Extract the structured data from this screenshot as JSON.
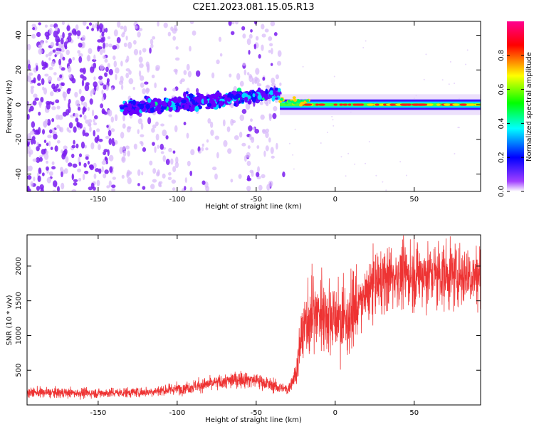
{
  "figure_title": "C2E1.2023.081.15.05.R13",
  "chart_data": [
    {
      "type": "heatmap",
      "title": "C2E1.2023.081.15.05.R13",
      "xlabel": "Height of straight line (km)",
      "ylabel": "Frequency (Hz)",
      "xlim": [
        -195,
        92
      ],
      "ylim": [
        -50,
        48
      ],
      "xticks": [
        -150,
        -100,
        -50,
        0,
        50
      ],
      "yticks": [
        -40,
        -20,
        0,
        20,
        40
      ],
      "xtick_labels": [
        "-150",
        "-100",
        "-50",
        "0",
        "50"
      ],
      "ytick_labels": [
        "-40",
        "-20",
        "0",
        "20",
        "40"
      ],
      "colorbar": {
        "label": "Normalized spectral amplitude",
        "range": [
          0.0,
          1.0
        ],
        "ticks": [
          0.0,
          0.2,
          0.4,
          0.6,
          0.8
        ],
        "tick_labels": [
          "0.0",
          "0.2",
          "0.4",
          "0.6",
          "0.8"
        ],
        "colormap": [
          "#ffffff",
          "#8a00ff",
          "#0000ff",
          "#00ffff",
          "#00ff00",
          "#ffff00",
          "#ff0000",
          "#ff0090"
        ]
      },
      "features": [
        {
          "name": "broadband noise",
          "x_range": [
            -195,
            -35
          ],
          "freq_range": [
            -50,
            48
          ],
          "amplitude": 0.05
        },
        {
          "name": "signal band (weak)",
          "x_range": [
            -135,
            -35
          ],
          "center_hz": [
            -2,
            6
          ],
          "amplitude": 0.25
        },
        {
          "name": "signal band (strong)",
          "x_range": [
            -35,
            92
          ],
          "center_hz": [
            2,
            0
          ],
          "amplitude": 0.9
        }
      ]
    },
    {
      "type": "line",
      "xlabel": "Height of straight line (km)",
      "ylabel": "SNR (10 * v/v)",
      "xlim": [
        -195,
        92
      ],
      "ylim": [
        0,
        2450
      ],
      "xticks": [
        -150,
        -100,
        -50,
        0,
        50
      ],
      "yticks": [
        500,
        1000,
        1500,
        2000
      ],
      "xtick_labels": [
        "-150",
        "-100",
        "-50",
        "0",
        "50"
      ],
      "ytick_labels": [
        "500",
        "1000",
        "1500",
        "2000"
      ],
      "series": [
        {
          "name": "SNR",
          "color": "#ee3333",
          "x": [
            -195,
            -150,
            -120,
            -100,
            -80,
            -60,
            -50,
            -40,
            -30,
            -25,
            -22,
            -18,
            -12,
            -5,
            0,
            5,
            10,
            15,
            20,
            25,
            35,
            50,
            70,
            92
          ],
          "values": [
            180,
            170,
            185,
            230,
            300,
            370,
            360,
            280,
            220,
            450,
            900,
            1150,
            1350,
            1300,
            1250,
            1200,
            1300,
            1450,
            1600,
            1750,
            1850,
            1880,
            1880,
            1870
          ]
        }
      ]
    }
  ]
}
